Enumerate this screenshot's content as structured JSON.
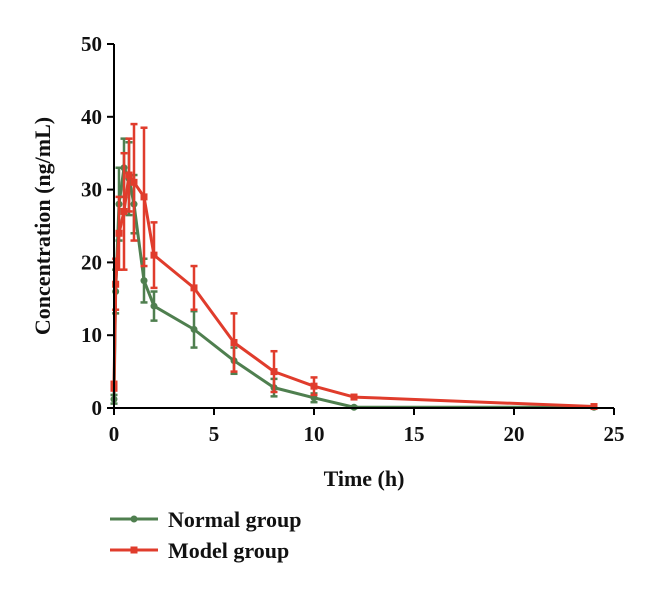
{
  "chart_data": {
    "type": "line",
    "xlabel": "Time (h)",
    "ylabel": "Concentration (ng/mL)",
    "xlim": [
      0,
      25
    ],
    "ylim": [
      0,
      50
    ],
    "x_ticks": [
      0,
      5,
      10,
      15,
      20,
      25
    ],
    "y_ticks": [
      0,
      10,
      20,
      30,
      40,
      50
    ],
    "grid": false,
    "legend_position": "bottom-left",
    "series": [
      {
        "name": "Normal group",
        "color": "#4f7f4f",
        "marker": "circle",
        "x": [
          0,
          0.083,
          0.25,
          0.5,
          0.75,
          1,
          1.5,
          2,
          4,
          6,
          8,
          10,
          12,
          24
        ],
        "y": [
          1.2,
          16,
          28,
          33,
          31.5,
          28,
          17.5,
          14,
          10.8,
          6.5,
          2.8,
          1.4,
          0.1,
          0.1
        ],
        "err": [
          0.6,
          3,
          5,
          4,
          5,
          4,
          3,
          2,
          2.5,
          1.8,
          1.2,
          0.6,
          0.1,
          0.1
        ]
      },
      {
        "name": "Model group",
        "color": "#e03c2c",
        "marker": "square",
        "x": [
          0,
          0.083,
          0.25,
          0.5,
          0.75,
          1,
          1.5,
          2,
          4,
          6,
          8,
          10,
          12,
          24
        ],
        "y": [
          3,
          17,
          24,
          27,
          32,
          31,
          29,
          21,
          16.5,
          9,
          5,
          3,
          1.5,
          0.2
        ],
        "err": [
          0.6,
          3.5,
          5,
          8,
          5,
          8,
          9.5,
          4.5,
          3,
          4,
          2.8,
          1.2,
          0.3,
          0.2
        ]
      }
    ]
  }
}
